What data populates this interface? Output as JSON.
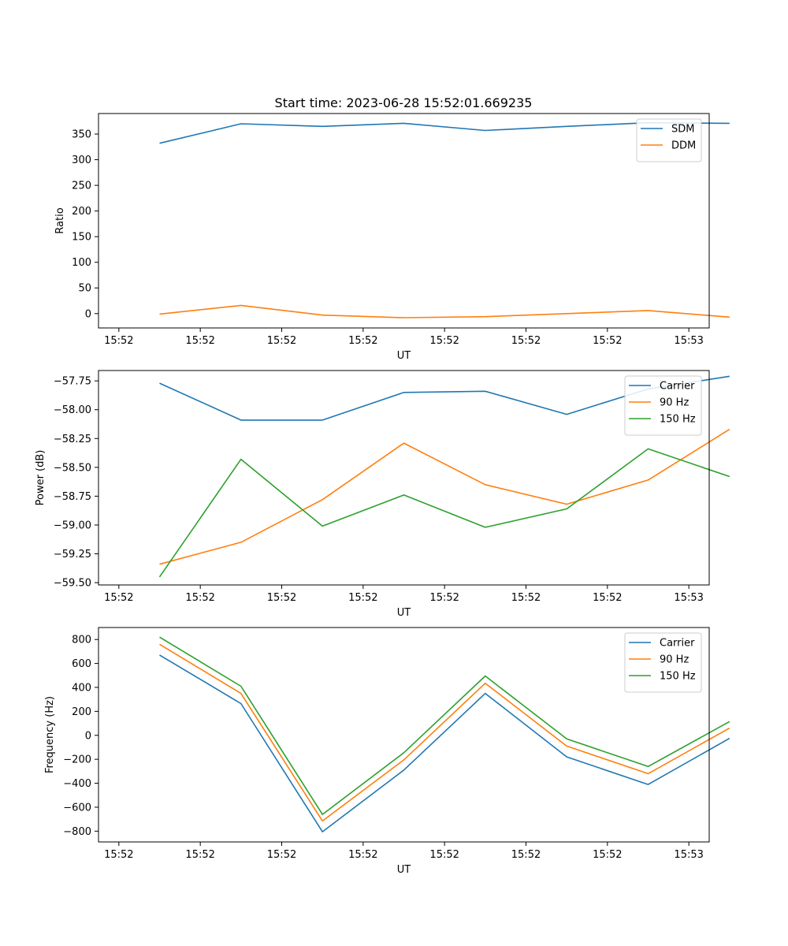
{
  "title": "Start time: 2023-06-28 15:52:01.669235",
  "chart_data": [
    {
      "type": "line",
      "xlabel": "UT",
      "ylabel": "Ratio",
      "x_tick_labels": [
        "15:52",
        "15:52",
        "15:52",
        "15:52",
        "15:52",
        "15:52",
        "15:52",
        "15:53"
      ],
      "x_ticks": [
        -0.5,
        0.5,
        1.5,
        2.5,
        3.5,
        4.5,
        5.5,
        6.5
      ],
      "xlim": [
        -0.75,
        6.75
      ],
      "x": [
        0,
        1,
        2,
        3,
        4,
        5,
        6,
        7
      ],
      "ylim": [
        -28,
        390
      ],
      "y_ticks": [
        0,
        50,
        100,
        150,
        200,
        250,
        300,
        350
      ],
      "series": [
        {
          "name": "SDM",
          "color": "#1f77b4",
          "values": [
            332,
            370,
            365,
            371,
            357,
            365,
            372,
            371
          ]
        },
        {
          "name": "DDM",
          "color": "#ff7f0e",
          "values": [
            -1,
            16,
            -3,
            -8,
            -6,
            0,
            6,
            -7
          ]
        }
      ],
      "legend": "upper right"
    },
    {
      "type": "line",
      "xlabel": "UT",
      "ylabel": "Power (dB)",
      "x_tick_labels": [
        "15:52",
        "15:52",
        "15:52",
        "15:52",
        "15:52",
        "15:52",
        "15:52",
        "15:53"
      ],
      "x_ticks": [
        -0.5,
        0.5,
        1.5,
        2.5,
        3.5,
        4.5,
        5.5,
        6.5
      ],
      "xlim": [
        -0.75,
        6.75
      ],
      "x": [
        0,
        1,
        2,
        3,
        4,
        5,
        6,
        7
      ],
      "ylim": [
        -59.52,
        -57.66
      ],
      "y_ticks": [
        -59.5,
        -59.25,
        -59.0,
        -58.75,
        -58.5,
        -58.25,
        -58.0,
        -57.75
      ],
      "y_tick_labels": [
        "−59.50",
        "−59.25",
        "−59.00",
        "−58.75",
        "−58.50",
        "−58.25",
        "−58.00",
        "−57.75"
      ],
      "series": [
        {
          "name": "Carrier",
          "color": "#1f77b4",
          "values": [
            -57.77,
            -58.09,
            -58.09,
            -57.85,
            -57.84,
            -58.04,
            -57.82,
            -57.71
          ]
        },
        {
          "name": "90 Hz",
          "color": "#ff7f0e",
          "values": [
            -59.34,
            -59.15,
            -58.78,
            -58.29,
            -58.65,
            -58.82,
            -58.61,
            -58.17
          ]
        },
        {
          "name": "150 Hz",
          "color": "#2ca02c",
          "values": [
            -59.45,
            -58.43,
            -59.01,
            -58.74,
            -59.02,
            -58.86,
            -58.34,
            -58.58
          ]
        }
      ],
      "legend": "upper right"
    },
    {
      "type": "line",
      "xlabel": "UT",
      "ylabel": "Frequency (Hz)",
      "x_tick_labels": [
        "15:52",
        "15:52",
        "15:52",
        "15:52",
        "15:52",
        "15:52",
        "15:52",
        "15:53"
      ],
      "x_ticks": [
        -0.5,
        0.5,
        1.5,
        2.5,
        3.5,
        4.5,
        5.5,
        6.5
      ],
      "xlim": [
        -0.75,
        6.75
      ],
      "x": [
        0,
        1,
        2,
        3,
        4,
        5,
        6,
        7
      ],
      "ylim": [
        -890,
        900
      ],
      "y_ticks": [
        -800,
        -600,
        -400,
        -200,
        0,
        200,
        400,
        600,
        800
      ],
      "y_tick_labels": [
        "−800",
        "−600",
        "−400",
        "−200",
        "0",
        "200",
        "400",
        "600",
        "800"
      ],
      "series": [
        {
          "name": "Carrier",
          "color": "#1f77b4",
          "values": [
            670,
            265,
            -805,
            -290,
            350,
            -180,
            -410,
            -25
          ]
        },
        {
          "name": "90 Hz",
          "color": "#ff7f0e",
          "values": [
            760,
            350,
            -715,
            -205,
            435,
            -90,
            -320,
            60
          ]
        },
        {
          "name": "150 Hz",
          "color": "#2ca02c",
          "values": [
            820,
            410,
            -660,
            -145,
            495,
            -30,
            -260,
            115
          ]
        }
      ],
      "legend": "upper right"
    }
  ]
}
